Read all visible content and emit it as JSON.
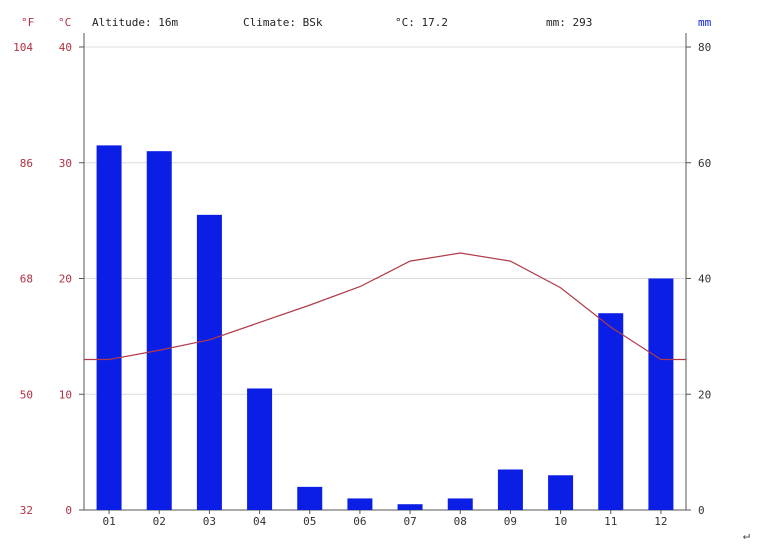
{
  "header": {
    "unit_f": "°F",
    "unit_c": "°C",
    "altitude": "Altitude: 16m",
    "climate": "Climate: BSk",
    "temp": "°C: 17.2",
    "precip": "mm: 293",
    "unit_mm": "mm"
  },
  "colors": {
    "bars": "#0a1ee6",
    "temp_line": "#b03a48",
    "temp_axis": "#b03040",
    "grid": "#dcdcdc"
  },
  "chart_data": {
    "type": "bar",
    "categories": [
      "01",
      "02",
      "03",
      "04",
      "05",
      "06",
      "07",
      "08",
      "09",
      "10",
      "11",
      "12"
    ],
    "series": [
      {
        "name": "mm",
        "type": "bar",
        "values": [
          63,
          62,
          51,
          21,
          4,
          2,
          1,
          2,
          7,
          6,
          34,
          40
        ]
      },
      {
        "name": "°C",
        "type": "line",
        "values": [
          13,
          13.8,
          14.7,
          16.2,
          17.7,
          19.3,
          21.5,
          22.2,
          21.5,
          19.2,
          15.8,
          13
        ]
      }
    ],
    "y_left_c": {
      "ticks": [
        "40",
        "30",
        "20",
        "10",
        "0"
      ],
      "ylim": [
        0,
        40
      ]
    },
    "y_left_f": {
      "ticks": [
        "104",
        "86",
        "68",
        "50",
        "32"
      ],
      "ylim": [
        32,
        104
      ]
    },
    "y_right_mm": {
      "ticks": [
        "80",
        "60",
        "40",
        "20",
        "0"
      ],
      "ylim": [
        0,
        80
      ]
    },
    "grid": true
  },
  "footer_mark": "↵"
}
